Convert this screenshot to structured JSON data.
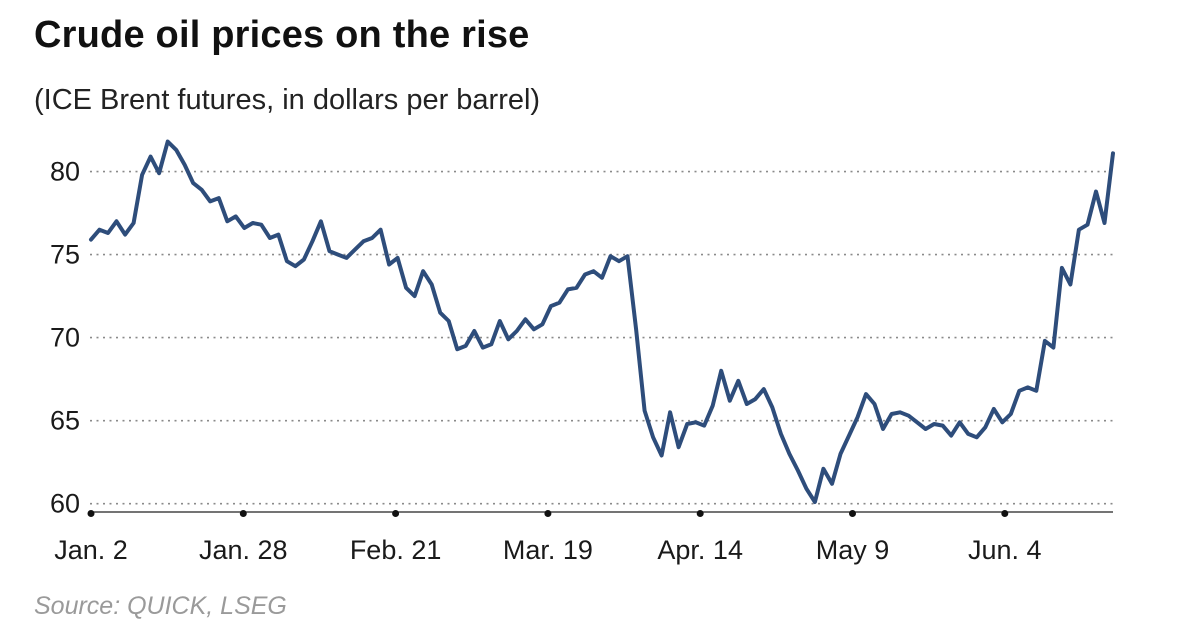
{
  "chart_data": {
    "type": "line",
    "title": "Crude oil prices on the rise",
    "subtitle": "(ICE Brent futures, in dollars per barrel)",
    "source": "Source: QUICK, LSEG",
    "xlabel": "",
    "ylabel": "",
    "ylim": [
      59.5,
      82.5
    ],
    "grid": true,
    "x_ticks": [
      "Jan. 2",
      "Jan. 28",
      "Feb. 21",
      "Mar. 19",
      "Apr. 14",
      "May 9",
      "Jun. 4"
    ],
    "y_ticks": [
      60,
      65,
      70,
      75,
      80
    ],
    "series": [
      {
        "name": "ICE Brent futures",
        "color": "#2e4d7b",
        "values": [
          75.9,
          76.5,
          76.3,
          77.0,
          76.2,
          76.9,
          79.8,
          80.9,
          79.9,
          81.8,
          81.3,
          80.4,
          79.3,
          78.9,
          78.2,
          78.4,
          77.0,
          77.3,
          76.6,
          76.9,
          76.8,
          76.0,
          76.2,
          74.6,
          74.3,
          74.7,
          75.8,
          77.0,
          75.2,
          75.0,
          74.8,
          75.3,
          75.8,
          76.0,
          76.5,
          74.4,
          74.8,
          73.0,
          72.5,
          74.0,
          73.2,
          71.5,
          71.0,
          69.3,
          69.5,
          70.4,
          69.4,
          69.6,
          71.0,
          69.9,
          70.4,
          71.1,
          70.5,
          70.8,
          71.9,
          72.1,
          72.9,
          73.0,
          73.8,
          74.0,
          73.6,
          74.9,
          74.6,
          74.9,
          70.5,
          65.6,
          64.0,
          62.9,
          65.5,
          63.4,
          64.8,
          64.9,
          64.7,
          65.9,
          68.0,
          66.2,
          67.4,
          66.0,
          66.3,
          66.9,
          65.8,
          64.2,
          63.0,
          62.0,
          60.9,
          60.1,
          62.1,
          61.2,
          63.0,
          64.1,
          65.2,
          66.6,
          66.0,
          64.5,
          65.4,
          65.5,
          65.3,
          64.9,
          64.5,
          64.8,
          64.7,
          64.1,
          64.9,
          64.2,
          64.0,
          64.6,
          65.7,
          64.9,
          65.4,
          66.8,
          67.0,
          66.8,
          69.8,
          69.4,
          74.2,
          73.2,
          76.5,
          76.8,
          78.8,
          76.9,
          81.1
        ]
      }
    ]
  }
}
